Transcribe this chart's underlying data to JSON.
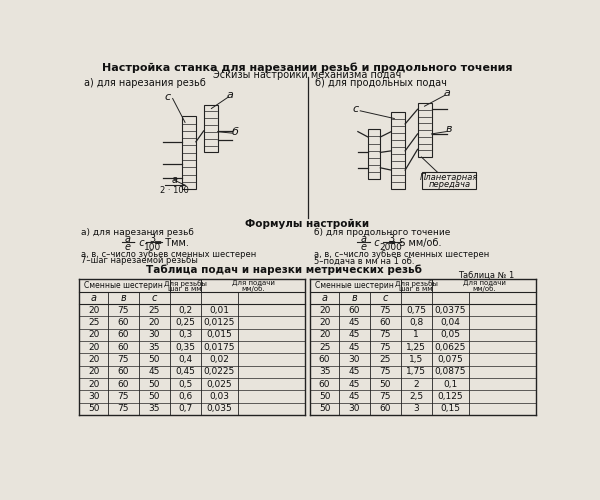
{
  "title1": "Настройка станка для нарезании резьб и продольного точения",
  "title2": "Эскизы настройки механизма подач",
  "subtitle_a": "а) для нарезания резьб",
  "subtitle_b": "б) для продольных подач",
  "formulas_title": "Формулы настройки",
  "formula_a_label": "а) для нарезания резьб",
  "formula_b_label": "б) для продольного точение",
  "note_a1": "а, в, с–число зубьев сменных шестерен",
  "note_a2": "7–шаг нарезаемой резьбы",
  "note_b1": "а, в, с–число зубьев сменных шестерен",
  "note_b2": "5–подача в мм на 1 об.",
  "table_title": "Таблица подач и нарезки метрических резьб",
  "table_num": "Таблица № 1",
  "left_table": [
    [
      20,
      75,
      25,
      "0,2",
      "0,01"
    ],
    [
      25,
      60,
      20,
      "0,25",
      "0,0125"
    ],
    [
      20,
      60,
      30,
      "0,3",
      "0,015"
    ],
    [
      20,
      60,
      35,
      "0,35",
      "0,0175"
    ],
    [
      20,
      75,
      50,
      "0,4",
      "0,02"
    ],
    [
      20,
      60,
      45,
      "0,45",
      "0,0225"
    ],
    [
      20,
      60,
      50,
      "0,5",
      "0,025"
    ],
    [
      30,
      75,
      50,
      "0,6",
      "0,03"
    ],
    [
      50,
      75,
      35,
      "0,7",
      "0,035"
    ]
  ],
  "right_table": [
    [
      20,
      60,
      75,
      "0,75",
      "0,0375"
    ],
    [
      20,
      45,
      60,
      "0,8",
      "0,04"
    ],
    [
      20,
      45,
      75,
      "1",
      "0,05"
    ],
    [
      25,
      45,
      75,
      "1,25",
      "0,0625"
    ],
    [
      60,
      30,
      25,
      "1,5",
      "0,075"
    ],
    [
      35,
      45,
      75,
      "1,75",
      "0,0875"
    ],
    [
      60,
      45,
      50,
      "2",
      "0,1"
    ],
    [
      50,
      45,
      75,
      "2,5",
      "0,125"
    ],
    [
      50,
      30,
      60,
      "3",
      "0,15"
    ]
  ],
  "bg_color": "#e8e4dc",
  "text_color": "#111111",
  "line_color": "#222222"
}
